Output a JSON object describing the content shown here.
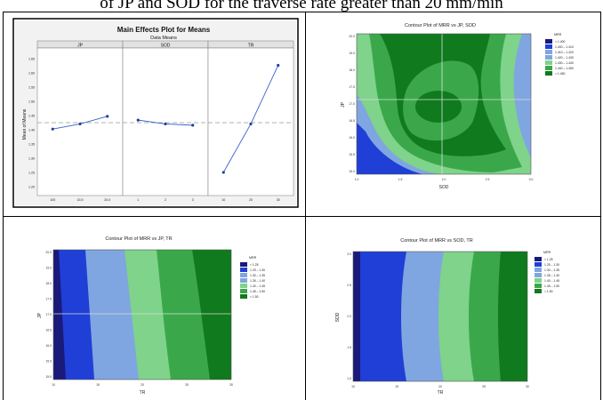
{
  "caption": "of JP and SOD for the traverse rate greater than 20 mm/min",
  "colors": {
    "dark_navy": "#1a1a7a",
    "blue": "#1f3fd6",
    "light_blue": "#7fa6e0",
    "light_green": "#7fd38a",
    "mid_green": "#3aa84a",
    "dark_green": "#0f7a1e",
    "line_blue": "#3a5fcd",
    "panel_bg": "#eeeeee"
  },
  "chart_data": [
    {
      "type": "line",
      "title": "Main Effects Plot for Means",
      "subtitle": "Data Means",
      "ylabel": "Mean of Means",
      "ylim": [
        1.15,
        1.68
      ],
      "yticks": [
        "1.65",
        "1.60",
        "1.55",
        "1.50",
        "1.45",
        "1.40",
        "1.35",
        "1.30",
        "1.25",
        "1.20"
      ],
      "reference_line": 1.415,
      "panels": [
        {
          "name": "JP",
          "x": [
            "100",
            "15.5",
            "20.0"
          ],
          "values": [
            1.39,
            1.41,
            1.44
          ]
        },
        {
          "name": "SOD",
          "x": [
            "1",
            "2",
            "3"
          ],
          "values": [
            1.425,
            1.41,
            1.405
          ]
        },
        {
          "name": "TR",
          "x": [
            "10",
            "20",
            "30"
          ],
          "values": [
            1.22,
            1.41,
            1.64
          ]
        }
      ]
    },
    {
      "type": "heatmap",
      "title": "Contour Plot of MRR vs JP, SOD",
      "xlabel": "SOD",
      "ylabel": "JP",
      "xticks": [
        "1.0",
        "1.5",
        "2.0",
        "2.5",
        "3.0"
      ],
      "yticks": [
        "20.0",
        "19.0",
        "18.0",
        "17.5",
        "17.0",
        "16.5",
        "16.0",
        "15.5",
        "15.0"
      ],
      "legend_title": "MRR",
      "legend": [
        "< 1.400",
        "1.400 – 1.410",
        "1.410 – 1.420",
        "1.420 – 1.430",
        "1.430 – 1.440",
        "1.440 – 1.450",
        "> 1.450"
      ]
    },
    {
      "type": "heatmap",
      "title": "Contour Plot of MRR vs JP, TR",
      "xlabel": "TR",
      "ylabel": "JP",
      "xticks": [
        "10",
        "15",
        "20",
        "25",
        "30"
      ],
      "yticks": [
        "20.0",
        "19.0",
        "18.0",
        "17.5",
        "17.0",
        "16.5",
        "16.0",
        "15.5",
        "15.0"
      ],
      "legend_title": "MRR",
      "legend": [
        "< 1.25",
        "1.25 – 1.30",
        "1.30 – 1.35",
        "1.35 – 1.40",
        "1.40 – 1.45",
        "1.45 – 1.50",
        "> 1.50"
      ]
    },
    {
      "type": "heatmap",
      "title": "Contour Plot of MRR vs SOD, TR",
      "xlabel": "TR",
      "ylabel": "SOD",
      "xticks": [
        "10",
        "15",
        "20",
        "25",
        "30"
      ],
      "yticks": [
        "3.0",
        "2.5",
        "2.0",
        "1.5",
        "1.0"
      ],
      "legend_title": "MRR",
      "legend": [
        "< 1.25",
        "1.25 – 1.30",
        "1.30 – 1.35",
        "1.35 – 1.40",
        "1.40 – 1.45",
        "1.45 – 1.50",
        "> 1.50"
      ]
    }
  ]
}
